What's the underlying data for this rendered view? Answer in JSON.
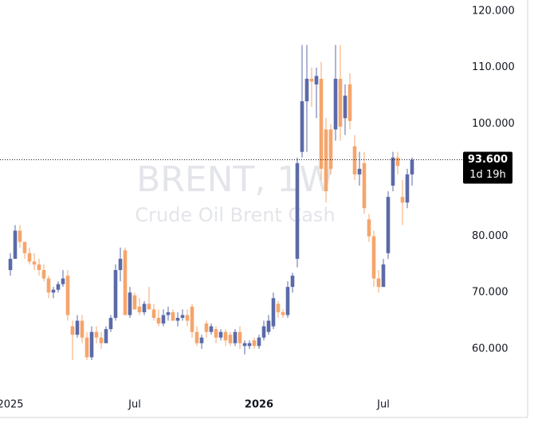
{
  "chart_data": {
    "type": "candlestick",
    "title": "BRENT, 1W",
    "subtitle": "Crude Oil Brent Cash",
    "categories": [
      "2025",
      null,
      null,
      null,
      null,
      null,
      null,
      null,
      null,
      null,
      null,
      null,
      null,
      null,
      null,
      null,
      null,
      null,
      null,
      null,
      null,
      null,
      null,
      null,
      null,
      null,
      "Jul",
      null,
      null,
      null,
      null,
      null,
      null,
      null,
      null,
      null,
      null,
      null,
      null,
      null,
      null,
      null,
      null,
      null,
      null,
      null,
      null,
      null,
      null,
      null,
      null,
      null,
      "2026",
      null,
      null,
      null,
      null,
      null,
      null,
      null,
      null,
      null,
      null,
      null,
      null,
      null,
      null,
      null,
      null,
      null,
      null,
      null,
      null,
      null,
      null,
      null,
      null,
      null,
      "Jul",
      null,
      null,
      null,
      null,
      null,
      null
    ],
    "open": [
      74,
      76,
      81,
      79,
      77,
      75.5,
      75,
      74,
      72.5,
      70,
      70.5,
      71.5,
      73,
      64,
      62.5,
      65,
      62,
      58.5,
      63,
      62,
      61,
      63.5,
      65.5,
      74,
      77.5,
      66,
      69.5,
      67.5,
      66.5,
      68,
      67,
      65.5,
      64.5,
      66,
      66.5,
      65,
      65.5,
      66,
      67.5,
      63,
      61,
      64.5,
      63,
      63.5,
      62,
      63,
      62.5,
      61,
      63,
      60.5,
      60.5,
      61.5,
      60.5,
      62,
      63,
      64,
      68,
      66.5,
      66,
      71,
      76,
      95,
      104,
      108,
      107,
      108,
      99,
      99,
      99,
      108,
      101,
      107,
      96,
      91,
      93,
      83,
      80,
      72.5,
      71,
      77,
      89,
      94,
      87,
      86,
      91
    ],
    "high": [
      77,
      82,
      82,
      79,
      78,
      77,
      76,
      75,
      73,
      71,
      72,
      74,
      74,
      65,
      66,
      66,
      63,
      64,
      64,
      63,
      64,
      66,
      75,
      78,
      78,
      71,
      70,
      69,
      68.5,
      71,
      68,
      67,
      67,
      67.5,
      67,
      66.5,
      67,
      67,
      68,
      64,
      62.5,
      65,
      64.5,
      64,
      63.5,
      63.5,
      63,
      63.5,
      64,
      61.5,
      61.5,
      62,
      62.5,
      65,
      66,
      70,
      68.5,
      67,
      72,
      73.5,
      94,
      114,
      114,
      110,
      110,
      111,
      101,
      100,
      114,
      114,
      107,
      109,
      98,
      95,
      95,
      84,
      81,
      74,
      76,
      88,
      95,
      95,
      90,
      92,
      94
    ],
    "low": [
      73,
      76,
      78,
      76,
      75,
      74,
      73,
      72,
      69,
      69,
      70,
      71,
      65,
      58,
      62,
      61,
      58,
      58,
      61,
      60,
      61,
      63,
      65,
      72,
      66,
      65.5,
      67,
      66,
      66,
      67,
      65,
      64,
      64,
      65,
      65,
      64,
      65,
      64,
      62,
      60.5,
      60,
      62,
      62.5,
      61,
      61.5,
      60.5,
      60.5,
      60.5,
      60,
      59,
      60,
      60,
      60,
      61.5,
      62.5,
      63.5,
      65.5,
      65.5,
      65.5,
      70,
      74.5,
      94,
      95,
      103,
      101,
      90,
      86,
      91,
      97,
      97,
      98,
      99,
      90,
      89,
      84,
      79,
      71,
      70,
      71,
      76,
      88,
      91,
      82,
      85,
      89
    ],
    "close": [
      76,
      81,
      79,
      77,
      75.5,
      75,
      74,
      72.5,
      70,
      70.5,
      71.5,
      72.5,
      66,
      62.5,
      65,
      62,
      58.5,
      63,
      62,
      61,
      63.5,
      65.5,
      74,
      76,
      66,
      70,
      67,
      66.5,
      68,
      67,
      65.5,
      64.5,
      66,
      66.5,
      65,
      65.5,
      66,
      65,
      63,
      61,
      62,
      63,
      64,
      62,
      63,
      61.5,
      61,
      63,
      61,
      61,
      61,
      60.5,
      62,
      64,
      65,
      69,
      66.5,
      66,
      71,
      73,
      93,
      104,
      108,
      107.5,
      108.5,
      92,
      88,
      92,
      108,
      99.5,
      105,
      100.5,
      91,
      92,
      85,
      80,
      72.5,
      71,
      75,
      87,
      94,
      92.5,
      86,
      91,
      93.6
    ],
    "up_color": "#5b6aa8",
    "down_color": "#f5a56c",
    "ylim": [
      47.8,
      122
    ],
    "yticks": [
      {
        "value": 120,
        "label": "120.000"
      },
      {
        "value": 110,
        "label": "110.000"
      },
      {
        "value": 100,
        "label": "100.000"
      },
      {
        "value": 80,
        "label": "80.000"
      },
      {
        "value": 70,
        "label": "70.000"
      },
      {
        "value": 60,
        "label": "60.000"
      }
    ],
    "last_price": {
      "value": 93.6,
      "label": "93.600"
    },
    "countdown": "1d 19h"
  }
}
